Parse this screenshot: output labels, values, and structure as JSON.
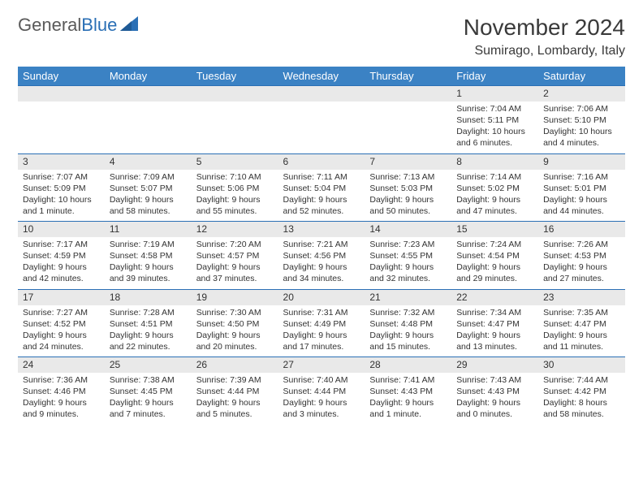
{
  "logo": {
    "text1": "General",
    "text2": "Blue"
  },
  "title": "November 2024",
  "location": "Sumirago, Lombardy, Italy",
  "colors": {
    "header_bg": "#3b82c4",
    "header_text": "#ffffff",
    "rule": "#2a6fb5",
    "daynum_bg": "#e9e9e9",
    "logo_gray": "#5a5a5a",
    "logo_blue": "#2a6fb5"
  },
  "weekdays": [
    "Sunday",
    "Monday",
    "Tuesday",
    "Wednesday",
    "Thursday",
    "Friday",
    "Saturday"
  ],
  "weeks": [
    [
      {
        "blank": true
      },
      {
        "blank": true
      },
      {
        "blank": true
      },
      {
        "blank": true
      },
      {
        "blank": true
      },
      {
        "day": "1",
        "sunrise": "Sunrise: 7:04 AM",
        "sunset": "Sunset: 5:11 PM",
        "daylight1": "Daylight: 10 hours",
        "daylight2": "and 6 minutes."
      },
      {
        "day": "2",
        "sunrise": "Sunrise: 7:06 AM",
        "sunset": "Sunset: 5:10 PM",
        "daylight1": "Daylight: 10 hours",
        "daylight2": "and 4 minutes."
      }
    ],
    [
      {
        "day": "3",
        "sunrise": "Sunrise: 7:07 AM",
        "sunset": "Sunset: 5:09 PM",
        "daylight1": "Daylight: 10 hours",
        "daylight2": "and 1 minute."
      },
      {
        "day": "4",
        "sunrise": "Sunrise: 7:09 AM",
        "sunset": "Sunset: 5:07 PM",
        "daylight1": "Daylight: 9 hours",
        "daylight2": "and 58 minutes."
      },
      {
        "day": "5",
        "sunrise": "Sunrise: 7:10 AM",
        "sunset": "Sunset: 5:06 PM",
        "daylight1": "Daylight: 9 hours",
        "daylight2": "and 55 minutes."
      },
      {
        "day": "6",
        "sunrise": "Sunrise: 7:11 AM",
        "sunset": "Sunset: 5:04 PM",
        "daylight1": "Daylight: 9 hours",
        "daylight2": "and 52 minutes."
      },
      {
        "day": "7",
        "sunrise": "Sunrise: 7:13 AM",
        "sunset": "Sunset: 5:03 PM",
        "daylight1": "Daylight: 9 hours",
        "daylight2": "and 50 minutes."
      },
      {
        "day": "8",
        "sunrise": "Sunrise: 7:14 AM",
        "sunset": "Sunset: 5:02 PM",
        "daylight1": "Daylight: 9 hours",
        "daylight2": "and 47 minutes."
      },
      {
        "day": "9",
        "sunrise": "Sunrise: 7:16 AM",
        "sunset": "Sunset: 5:01 PM",
        "daylight1": "Daylight: 9 hours",
        "daylight2": "and 44 minutes."
      }
    ],
    [
      {
        "day": "10",
        "sunrise": "Sunrise: 7:17 AM",
        "sunset": "Sunset: 4:59 PM",
        "daylight1": "Daylight: 9 hours",
        "daylight2": "and 42 minutes."
      },
      {
        "day": "11",
        "sunrise": "Sunrise: 7:19 AM",
        "sunset": "Sunset: 4:58 PM",
        "daylight1": "Daylight: 9 hours",
        "daylight2": "and 39 minutes."
      },
      {
        "day": "12",
        "sunrise": "Sunrise: 7:20 AM",
        "sunset": "Sunset: 4:57 PM",
        "daylight1": "Daylight: 9 hours",
        "daylight2": "and 37 minutes."
      },
      {
        "day": "13",
        "sunrise": "Sunrise: 7:21 AM",
        "sunset": "Sunset: 4:56 PM",
        "daylight1": "Daylight: 9 hours",
        "daylight2": "and 34 minutes."
      },
      {
        "day": "14",
        "sunrise": "Sunrise: 7:23 AM",
        "sunset": "Sunset: 4:55 PM",
        "daylight1": "Daylight: 9 hours",
        "daylight2": "and 32 minutes."
      },
      {
        "day": "15",
        "sunrise": "Sunrise: 7:24 AM",
        "sunset": "Sunset: 4:54 PM",
        "daylight1": "Daylight: 9 hours",
        "daylight2": "and 29 minutes."
      },
      {
        "day": "16",
        "sunrise": "Sunrise: 7:26 AM",
        "sunset": "Sunset: 4:53 PM",
        "daylight1": "Daylight: 9 hours",
        "daylight2": "and 27 minutes."
      }
    ],
    [
      {
        "day": "17",
        "sunrise": "Sunrise: 7:27 AM",
        "sunset": "Sunset: 4:52 PM",
        "daylight1": "Daylight: 9 hours",
        "daylight2": "and 24 minutes."
      },
      {
        "day": "18",
        "sunrise": "Sunrise: 7:28 AM",
        "sunset": "Sunset: 4:51 PM",
        "daylight1": "Daylight: 9 hours",
        "daylight2": "and 22 minutes."
      },
      {
        "day": "19",
        "sunrise": "Sunrise: 7:30 AM",
        "sunset": "Sunset: 4:50 PM",
        "daylight1": "Daylight: 9 hours",
        "daylight2": "and 20 minutes."
      },
      {
        "day": "20",
        "sunrise": "Sunrise: 7:31 AM",
        "sunset": "Sunset: 4:49 PM",
        "daylight1": "Daylight: 9 hours",
        "daylight2": "and 17 minutes."
      },
      {
        "day": "21",
        "sunrise": "Sunrise: 7:32 AM",
        "sunset": "Sunset: 4:48 PM",
        "daylight1": "Daylight: 9 hours",
        "daylight2": "and 15 minutes."
      },
      {
        "day": "22",
        "sunrise": "Sunrise: 7:34 AM",
        "sunset": "Sunset: 4:47 PM",
        "daylight1": "Daylight: 9 hours",
        "daylight2": "and 13 minutes."
      },
      {
        "day": "23",
        "sunrise": "Sunrise: 7:35 AM",
        "sunset": "Sunset: 4:47 PM",
        "daylight1": "Daylight: 9 hours",
        "daylight2": "and 11 minutes."
      }
    ],
    [
      {
        "day": "24",
        "sunrise": "Sunrise: 7:36 AM",
        "sunset": "Sunset: 4:46 PM",
        "daylight1": "Daylight: 9 hours",
        "daylight2": "and 9 minutes."
      },
      {
        "day": "25",
        "sunrise": "Sunrise: 7:38 AM",
        "sunset": "Sunset: 4:45 PM",
        "daylight1": "Daylight: 9 hours",
        "daylight2": "and 7 minutes."
      },
      {
        "day": "26",
        "sunrise": "Sunrise: 7:39 AM",
        "sunset": "Sunset: 4:44 PM",
        "daylight1": "Daylight: 9 hours",
        "daylight2": "and 5 minutes."
      },
      {
        "day": "27",
        "sunrise": "Sunrise: 7:40 AM",
        "sunset": "Sunset: 4:44 PM",
        "daylight1": "Daylight: 9 hours",
        "daylight2": "and 3 minutes."
      },
      {
        "day": "28",
        "sunrise": "Sunrise: 7:41 AM",
        "sunset": "Sunset: 4:43 PM",
        "daylight1": "Daylight: 9 hours",
        "daylight2": "and 1 minute."
      },
      {
        "day": "29",
        "sunrise": "Sunrise: 7:43 AM",
        "sunset": "Sunset: 4:43 PM",
        "daylight1": "Daylight: 9 hours",
        "daylight2": "and 0 minutes."
      },
      {
        "day": "30",
        "sunrise": "Sunrise: 7:44 AM",
        "sunset": "Sunset: 4:42 PM",
        "daylight1": "Daylight: 8 hours",
        "daylight2": "and 58 minutes."
      }
    ]
  ]
}
